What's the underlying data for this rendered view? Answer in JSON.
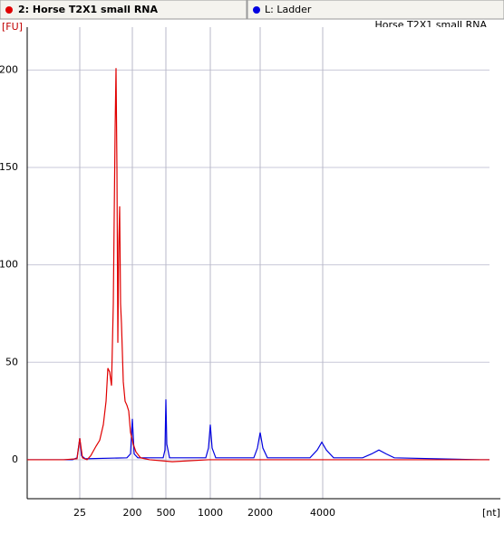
{
  "tabs": [
    {
      "label": "2: Horse T2X1 small RNA",
      "color": "#e00000"
    },
    {
      "label": "L: Ladder",
      "color": "#0000e0"
    }
  ],
  "chart_data": {
    "type": "line",
    "title": "Horse T2X1 small RNA",
    "y_label": "[FU]",
    "x_label": "[nt]",
    "xlim": [
      0,
      510
    ],
    "ylim": [
      -20,
      222
    ],
    "xticks": [
      {
        "value": 58,
        "label": "25"
      },
      {
        "value": 116,
        "label": "200"
      },
      {
        "value": 153,
        "label": "500"
      },
      {
        "value": 202,
        "label": "1000"
      },
      {
        "value": 257,
        "label": "2000"
      },
      {
        "value": 326,
        "label": "4000"
      }
    ],
    "yticks": [
      0,
      50,
      100,
      150,
      200
    ],
    "grid": true,
    "series": [
      {
        "name": "2: Horse T2X1 small RNA",
        "color": "#e00000",
        "x": [
          0,
          40,
          55,
          58,
          61,
          66,
          70,
          76,
          80,
          84,
          87,
          89,
          91,
          93,
          95,
          97,
          98,
          99,
          100,
          101,
          102,
          103,
          104,
          106,
          108,
          110,
          112,
          114,
          117,
          120,
          125,
          135,
          160,
          200,
          510
        ],
        "values": [
          0,
          0,
          0.5,
          11,
          1,
          0,
          2,
          7,
          10,
          18,
          30,
          47,
          45,
          38,
          80,
          170,
          201,
          150,
          60,
          110,
          130,
          80,
          70,
          40,
          30,
          28,
          25,
          14,
          8,
          4,
          1,
          0,
          -1,
          0,
          0
        ]
      },
      {
        "name": "L: Ladder",
        "color": "#0000e0",
        "x": [
          0,
          50,
          55,
          58,
          60,
          64,
          110,
          114,
          116,
          118,
          122,
          150,
          152,
          153,
          154,
          157,
          197,
          200,
          202,
          204,
          208,
          250,
          254,
          257,
          260,
          265,
          312,
          320,
          325,
          330,
          338,
          370,
          380,
          388,
          396,
          405,
          500,
          510
        ],
        "values": [
          0,
          0,
          1,
          11,
          2,
          0.5,
          1,
          3,
          21,
          3,
          1,
          1,
          5,
          31,
          8,
          1,
          1,
          6,
          18,
          6,
          1,
          1,
          6,
          14,
          6,
          1,
          1,
          5,
          9,
          5,
          1,
          1,
          3,
          5,
          3,
          1,
          0,
          0
        ]
      }
    ]
  }
}
